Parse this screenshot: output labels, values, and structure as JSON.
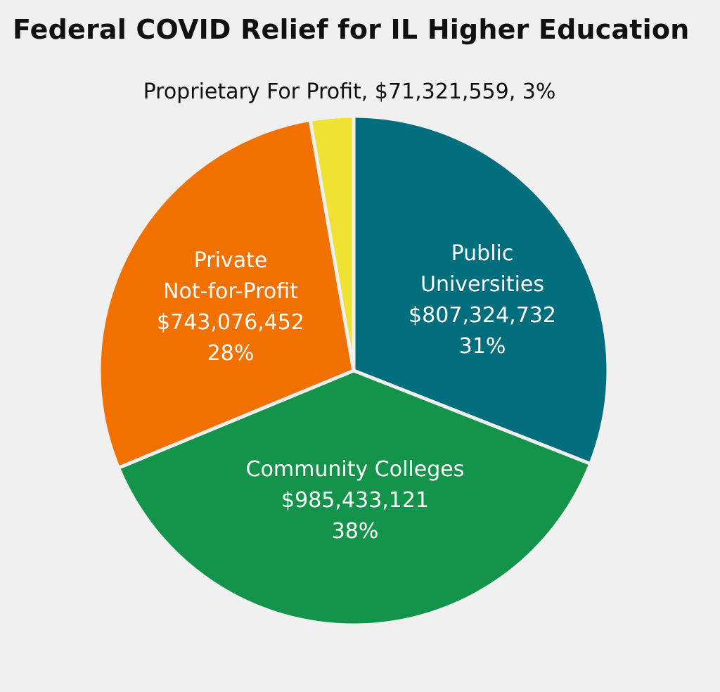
{
  "chart_data": {
    "type": "pie",
    "title": "Federal COVID Relief for IL Higher Education",
    "slices": [
      {
        "name": "Public Universities",
        "label_lines": [
          "Public",
          "Universities"
        ],
        "amount": "$807,324,732",
        "percent": "31%",
        "value": 807324732,
        "color": "#006e7c"
      },
      {
        "name": "Community Colleges",
        "label_lines": [
          "Community Colleges"
        ],
        "amount": "$985,433,121",
        "percent": "38%",
        "value": 985433121,
        "color": "#14934a"
      },
      {
        "name": "Private Not-for-Profit",
        "label_lines": [
          "Private",
          "Not-for-Profit"
        ],
        "amount": "$743,076,452",
        "percent": "28%",
        "value": 743076452,
        "color": "#f07000"
      },
      {
        "name": "Proprietary For Profit",
        "label_lines": [
          "Proprietary For Profit, $71,321,559, 3%"
        ],
        "amount": "$71,321,559",
        "percent": "3%",
        "value": 71321559,
        "color": "#f0e232"
      }
    ],
    "legend": "none"
  }
}
